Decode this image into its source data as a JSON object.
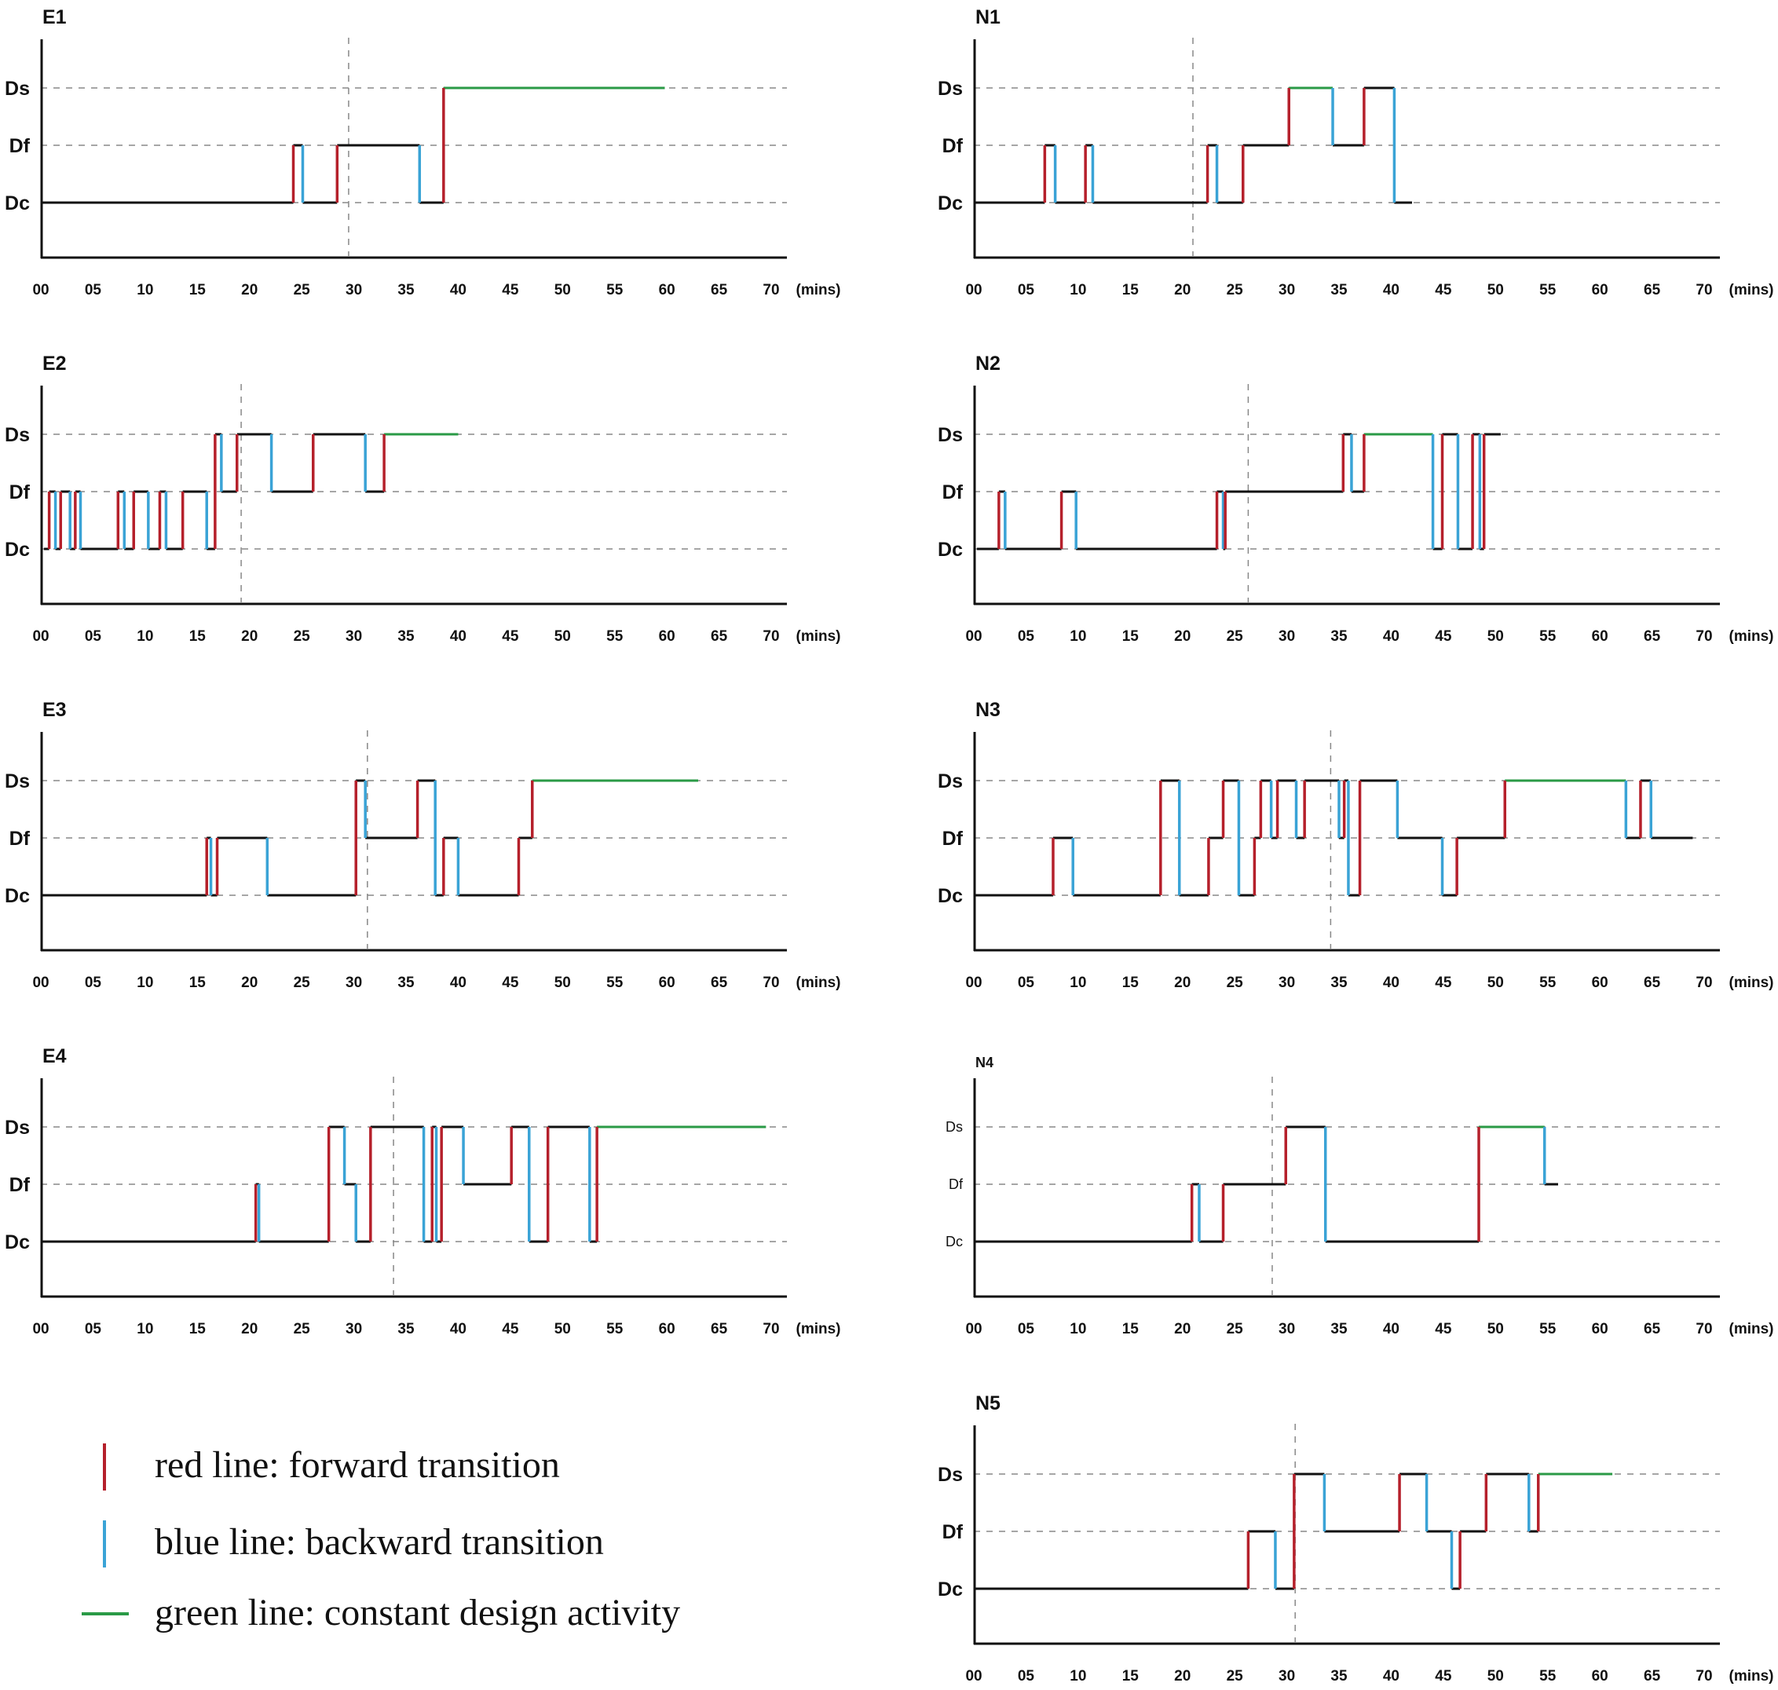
{
  "chart_data": [
    {
      "title": "E1",
      "type": "line",
      "xlabel": "(mins)",
      "xticks": [
        "00",
        "05",
        "10",
        "15",
        "20",
        "25",
        "30",
        "35",
        "40",
        "45",
        "50",
        "55",
        "60",
        "65",
        "70"
      ],
      "yticks": [
        "Dc",
        "Df",
        "Ds"
      ],
      "xlim": [
        0,
        70
      ],
      "divider": 29.5,
      "transitions": [
        [
          24.2,
          0,
          1
        ],
        [
          25.1,
          1,
          0
        ],
        [
          28.4,
          0,
          1
        ],
        [
          36.3,
          1,
          0
        ],
        [
          38.6,
          0,
          2
        ]
      ],
      "green": [
        [
          38.6,
          59.8
        ]
      ]
    },
    {
      "title": "N1",
      "type": "line",
      "xlabel": "(mins)",
      "xticks": [
        "00",
        "05",
        "10",
        "15",
        "20",
        "25",
        "30",
        "35",
        "40",
        "45",
        "50",
        "55",
        "60",
        "65",
        "70"
      ],
      "yticks": [
        "Dc",
        "Df",
        "Ds"
      ],
      "xlim": [
        0,
        70
      ],
      "divider": 21.0,
      "transitions": [
        [
          6.8,
          0,
          1
        ],
        [
          7.8,
          1,
          0
        ],
        [
          10.7,
          0,
          1
        ],
        [
          11.4,
          1,
          0
        ],
        [
          22.4,
          0,
          1
        ],
        [
          23.3,
          1,
          0
        ],
        [
          25.8,
          0,
          1
        ],
        [
          30.2,
          1,
          2
        ],
        [
          34.4,
          2,
          1
        ],
        [
          37.4,
          1,
          2
        ],
        [
          40.3,
          2,
          0
        ]
      ],
      "green": [
        [
          30.2,
          34.4
        ]
      ],
      "end": 42.0
    },
    {
      "title": "E2",
      "type": "line",
      "xlabel": "(mins)",
      "xticks": [
        "00",
        "05",
        "10",
        "15",
        "20",
        "25",
        "30",
        "35",
        "40",
        "45",
        "50",
        "55",
        "60",
        "65",
        "70"
      ],
      "yticks": [
        "Dc",
        "Df",
        "Ds"
      ],
      "xlim": [
        0,
        70
      ],
      "divider": 19.2,
      "start": 0.3,
      "transitions": [
        [
          0.8,
          0,
          1
        ],
        [
          1.4,
          1,
          0
        ],
        [
          1.9,
          0,
          1
        ],
        [
          2.8,
          1,
          0
        ],
        [
          3.3,
          0,
          1
        ],
        [
          3.8,
          1,
          0
        ],
        [
          7.4,
          0,
          1
        ],
        [
          8.0,
          1,
          0
        ],
        [
          8.9,
          0,
          1
        ],
        [
          10.3,
          1,
          0
        ],
        [
          11.4,
          0,
          1
        ],
        [
          12.0,
          1,
          0
        ],
        [
          13.6,
          0,
          1
        ],
        [
          15.9,
          1,
          0
        ],
        [
          16.7,
          0,
          2
        ],
        [
          17.3,
          2,
          1
        ],
        [
          18.8,
          1,
          2
        ],
        [
          22.1,
          2,
          1
        ],
        [
          26.1,
          1,
          2
        ],
        [
          31.1,
          2,
          1
        ],
        [
          32.9,
          1,
          2
        ]
      ],
      "green": [
        [
          32.9,
          40.0
        ]
      ]
    },
    {
      "title": "N2",
      "type": "line",
      "xlabel": "(mins)",
      "xticks": [
        "00",
        "05",
        "10",
        "15",
        "20",
        "25",
        "30",
        "35",
        "40",
        "45",
        "50",
        "55",
        "60",
        "65",
        "70"
      ],
      "yticks": [
        "Dc",
        "Df",
        "Ds"
      ],
      "xlim": [
        0,
        70
      ],
      "divider": 26.3,
      "start": 0.3,
      "transitions": [
        [
          2.4,
          0,
          1
        ],
        [
          3.0,
          1,
          0
        ],
        [
          8.4,
          0,
          1
        ],
        [
          9.8,
          1,
          0
        ],
        [
          23.3,
          0,
          1
        ],
        [
          23.9,
          1,
          0
        ],
        [
          24.1,
          0,
          1
        ],
        [
          35.4,
          1,
          2
        ],
        [
          36.2,
          2,
          1
        ],
        [
          37.4,
          1,
          2
        ],
        [
          44.0,
          2,
          0
        ],
        [
          44.9,
          0,
          2
        ],
        [
          46.4,
          2,
          0
        ],
        [
          47.8,
          0,
          2
        ],
        [
          48.5,
          2,
          0
        ],
        [
          48.9,
          0,
          2
        ]
      ],
      "green": [
        [
          37.4,
          44.0
        ]
      ],
      "end": 50.5
    },
    {
      "title": "E3",
      "type": "line",
      "xlabel": "(mins)",
      "xticks": [
        "00",
        "05",
        "10",
        "15",
        "20",
        "25",
        "30",
        "35",
        "40",
        "45",
        "50",
        "55",
        "60",
        "65",
        "70"
      ],
      "yticks": [
        "Dc",
        "Df",
        "Ds"
      ],
      "xlim": [
        0,
        70
      ],
      "divider": 31.3,
      "transitions": [
        [
          15.9,
          0,
          1
        ],
        [
          16.3,
          1,
          0
        ],
        [
          16.9,
          0,
          1
        ],
        [
          21.7,
          1,
          0
        ],
        [
          30.2,
          0,
          2
        ],
        [
          31.1,
          2,
          1
        ],
        [
          36.1,
          1,
          2
        ],
        [
          37.8,
          2,
          0
        ],
        [
          38.6,
          0,
          1
        ],
        [
          40.0,
          1,
          0
        ],
        [
          45.8,
          0,
          1
        ],
        [
          47.1,
          1,
          2
        ]
      ],
      "green": [
        [
          47.1,
          63.0
        ]
      ]
    },
    {
      "title": "N3",
      "type": "line",
      "xlabel": "(mins)",
      "xticks": [
        "00",
        "05",
        "10",
        "15",
        "20",
        "25",
        "30",
        "35",
        "40",
        "45",
        "50",
        "55",
        "60",
        "65",
        "70"
      ],
      "yticks": [
        "Dc",
        "Df",
        "Ds"
      ],
      "xlim": [
        0,
        70
      ],
      "divider": 34.2,
      "transitions": [
        [
          7.6,
          0,
          1
        ],
        [
          9.5,
          1,
          0
        ],
        [
          17.9,
          0,
          2
        ],
        [
          19.7,
          2,
          0
        ],
        [
          22.5,
          0,
          1
        ],
        [
          23.9,
          1,
          2
        ],
        [
          25.4,
          2,
          0
        ],
        [
          26.9,
          0,
          1
        ],
        [
          27.5,
          1,
          2
        ],
        [
          28.5,
          2,
          1
        ],
        [
          29.1,
          1,
          2
        ],
        [
          30.9,
          2,
          1
        ],
        [
          31.7,
          1,
          2
        ],
        [
          35.0,
          2,
          1
        ],
        [
          35.5,
          1,
          2
        ],
        [
          35.9,
          2,
          0
        ],
        [
          37.0,
          0,
          2
        ],
        [
          40.6,
          2,
          1
        ],
        [
          44.9,
          1,
          0
        ],
        [
          46.3,
          0,
          1
        ],
        [
          50.9,
          1,
          2
        ],
        [
          62.5,
          2,
          1
        ],
        [
          63.9,
          1,
          2
        ],
        [
          64.9,
          2,
          1
        ]
      ],
      "green": [
        [
          50.9,
          62.5
        ]
      ],
      "end": 68.9
    },
    {
      "title": "E4",
      "type": "line",
      "xlabel": "(mins)",
      "xticks": [
        "00",
        "05",
        "10",
        "15",
        "20",
        "25",
        "30",
        "35",
        "40",
        "45",
        "50",
        "55",
        "60",
        "65",
        "70"
      ],
      "yticks": [
        "Dc",
        "Df",
        "Ds"
      ],
      "xlim": [
        0,
        70
      ],
      "divider": 33.8,
      "transitions": [
        [
          20.6,
          0,
          1
        ],
        [
          20.9,
          1,
          0
        ],
        [
          27.6,
          0,
          2
        ],
        [
          29.1,
          2,
          1
        ],
        [
          30.2,
          1,
          0
        ],
        [
          31.6,
          0,
          2
        ],
        [
          36.7,
          2,
          0
        ],
        [
          37.5,
          0,
          2
        ],
        [
          37.9,
          2,
          0
        ],
        [
          38.4,
          0,
          2
        ],
        [
          40.5,
          2,
          1
        ],
        [
          45.1,
          1,
          2
        ],
        [
          46.8,
          2,
          0
        ],
        [
          48.6,
          0,
          2
        ],
        [
          52.6,
          2,
          0
        ],
        [
          53.3,
          0,
          2
        ]
      ],
      "green": [
        [
          53.3,
          69.5
        ]
      ]
    },
    {
      "title": "N4",
      "type": "line",
      "xlabel": "(mins)",
      "xticks": [
        "00",
        "05",
        "10",
        "15",
        "20",
        "25",
        "30",
        "35",
        "40",
        "45",
        "50",
        "55",
        "60",
        "65",
        "70"
      ],
      "yticks": [
        "Dc",
        "Df",
        "Ds"
      ],
      "xlim": [
        0,
        70
      ],
      "divider": 28.6,
      "transitions": [
        [
          20.9,
          0,
          1
        ],
        [
          21.6,
          1,
          0
        ],
        [
          23.9,
          0,
          1
        ],
        [
          29.9,
          1,
          2
        ],
        [
          33.7,
          2,
          0
        ],
        [
          48.4,
          0,
          2
        ],
        [
          54.7,
          2,
          1
        ]
      ],
      "green": [
        [
          48.4,
          54.7
        ]
      ],
      "end": 56.0
    },
    {
      "title": "N5",
      "type": "line",
      "xlabel": "(mins)",
      "xticks": [
        "00",
        "05",
        "10",
        "15",
        "20",
        "25",
        "30",
        "35",
        "40",
        "45",
        "50",
        "55",
        "60",
        "65",
        "70"
      ],
      "yticks": [
        "Dc",
        "Df",
        "Ds"
      ],
      "xlim": [
        0,
        70
      ],
      "divider": 30.8,
      "transitions": [
        [
          26.3,
          0,
          1
        ],
        [
          28.9,
          1,
          0
        ],
        [
          30.7,
          0,
          2
        ],
        [
          33.6,
          2,
          1
        ],
        [
          40.8,
          1,
          2
        ],
        [
          43.4,
          2,
          1
        ],
        [
          45.8,
          1,
          0
        ],
        [
          46.6,
          0,
          1
        ],
        [
          49.1,
          1,
          2
        ],
        [
          53.2,
          2,
          1
        ],
        [
          54.1,
          1,
          2
        ]
      ],
      "green": [
        [
          54.1,
          61.2
        ]
      ]
    }
  ],
  "legend": [
    {
      "label": "red line: forward transition",
      "color": "#b5202b"
    },
    {
      "label": "blue line: backward transition",
      "color": "#3aa3d6"
    },
    {
      "label": "green line: constant design activity",
      "color": "#2a9a46"
    }
  ],
  "colors": {
    "forward": "#b5202b",
    "backward": "#3aa3d6",
    "constant": "#2a9a46",
    "axis": "#111111",
    "grid": "#888888"
  }
}
